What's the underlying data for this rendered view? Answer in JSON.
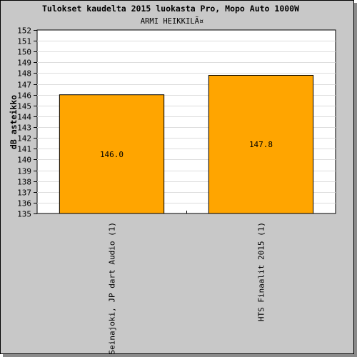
{
  "chart_data": {
    "type": "bar",
    "title": "Tulokset kaudelta 2015 luokasta Pro, Mopo Auto 1000W",
    "subtitle": "ARMI HEIKKILÃ¤",
    "ylabel": "dB asteikko",
    "xlabel": "",
    "ylim": [
      135,
      152
    ],
    "yticks": [
      "135",
      "136",
      "137",
      "138",
      "139",
      "140",
      "141",
      "142",
      "143",
      "144",
      "145",
      "146",
      "147",
      "148",
      "149",
      "150",
      "151",
      "152"
    ],
    "categories": [
      "Seinajoki, JP dart Audio (1)",
      "HTS Finaalit 2015 (1)"
    ],
    "values": [
      146.0,
      147.8
    ],
    "value_labels": [
      "146.0",
      "147.8"
    ],
    "bar_color": "#ffa500",
    "grid": true
  }
}
